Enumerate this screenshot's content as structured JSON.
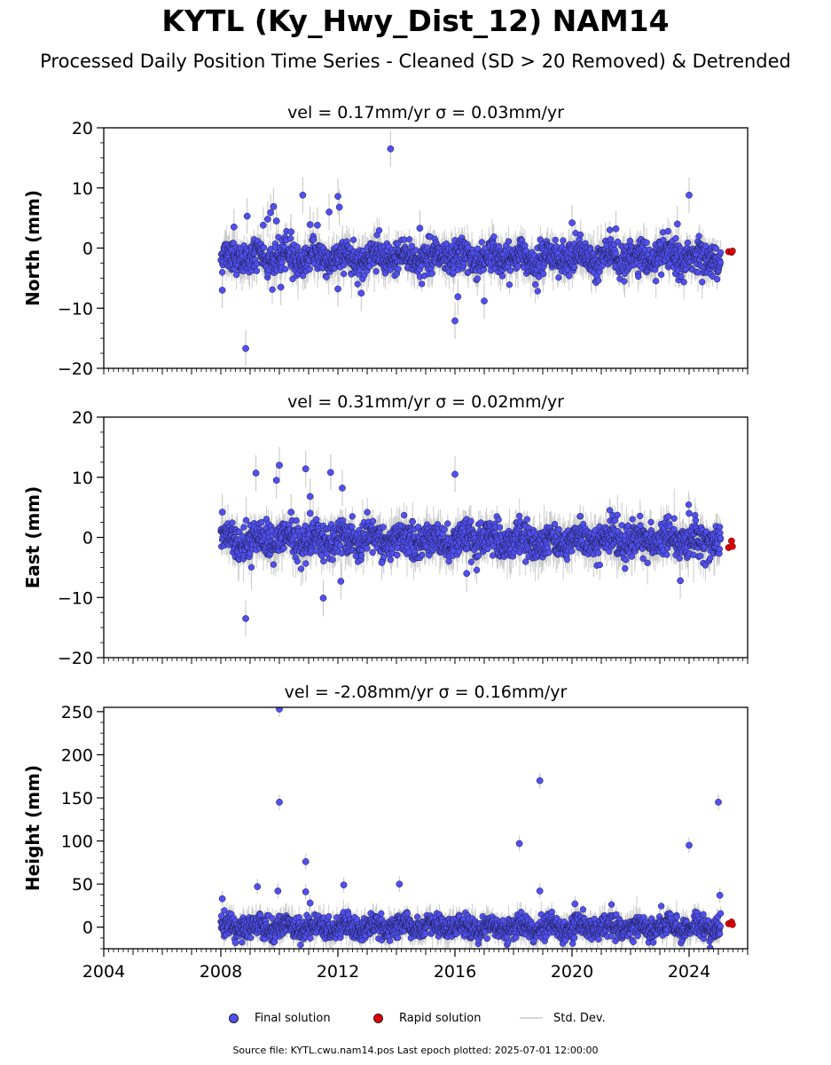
{
  "header": {
    "title": "KYTL (Ky_Hwy_Dist_12) NAM14",
    "subtitle": "Processed Daily Position Time Series - Cleaned (SD > 20 Removed) & Detrended"
  },
  "legend": {
    "final": "Final solution",
    "rapid": "Rapid solution",
    "std": "Std. Dev."
  },
  "footer": {
    "text": "Source file: KYTL.cwu.nam14.pos  Last epoch plotted: 2025-07-01 12:00:00"
  },
  "colors": {
    "final_fill": "#5050f0",
    "final_edge": "#1a1a40",
    "rapid_fill": "#e00000",
    "stddev": "#cccccc"
  },
  "chart_data": [
    {
      "type": "scatter",
      "title": "vel = 0.17mm/yr   σ = 0.03mm/yr",
      "ylabel": "North (mm)",
      "xlim": [
        2004.0,
        2026.0
      ],
      "ylim": [
        -20,
        20
      ],
      "yticks": [
        -20,
        -10,
        0,
        10,
        20
      ],
      "xticks": [
        2004,
        2008,
        2012,
        2016,
        2020,
        2024
      ],
      "xticklabels_visible": false,
      "final_range": [
        2008.0,
        2025.08
      ],
      "noise_sd": 1.3,
      "outliers": [
        [
          2008.05,
          -7.0
        ],
        [
          2008.45,
          3.5
        ],
        [
          2008.85,
          -16.7
        ],
        [
          2008.9,
          5.3
        ],
        [
          2009.45,
          3.8
        ],
        [
          2009.6,
          4.8
        ],
        [
          2009.7,
          5.9
        ],
        [
          2009.8,
          6.9
        ],
        [
          2009.9,
          4.5
        ],
        [
          2010.05,
          -6.5
        ],
        [
          2010.4,
          2.7
        ],
        [
          2010.8,
          8.8
        ],
        [
          2011.05,
          3.9
        ],
        [
          2011.3,
          3.8
        ],
        [
          2011.7,
          6.0
        ],
        [
          2012.0,
          8.6
        ],
        [
          2012.05,
          6.8
        ],
        [
          2012.0,
          -6.8
        ],
        [
          2012.8,
          -7.5
        ],
        [
          2013.8,
          16.5
        ],
        [
          2014.8,
          3.3
        ],
        [
          2016.0,
          -12.1
        ],
        [
          2016.1,
          -8.1
        ],
        [
          2017.0,
          -8.8
        ],
        [
          2020.0,
          4.2
        ],
        [
          2021.5,
          3.2
        ],
        [
          2024.0,
          8.8
        ],
        [
          2023.6,
          4.0
        ]
      ],
      "rapid": [
        [
          2025.35,
          -0.6
        ],
        [
          2025.45,
          -0.7
        ],
        [
          2025.48,
          -0.5
        ]
      ]
    },
    {
      "type": "scatter",
      "title": "vel = 0.31mm/yr   σ = 0.02mm/yr",
      "ylabel": "East (mm)",
      "xlim": [
        2004.0,
        2026.0
      ],
      "ylim": [
        -20,
        20
      ],
      "yticks": [
        -20,
        -10,
        0,
        10,
        20
      ],
      "xticks": [
        2004,
        2008,
        2012,
        2016,
        2020,
        2024
      ],
      "xticklabels_visible": false,
      "final_range": [
        2008.0,
        2025.08
      ],
      "noise_sd": 1.4,
      "outliers": [
        [
          2008.05,
          4.2
        ],
        [
          2008.85,
          -13.5
        ],
        [
          2009.2,
          10.7
        ],
        [
          2009.9,
          9.5
        ],
        [
          2010.0,
          12.0
        ],
        [
          2010.4,
          4.2
        ],
        [
          2010.9,
          11.4
        ],
        [
          2011.05,
          6.8
        ],
        [
          2011.05,
          4.0
        ],
        [
          2011.5,
          -10.1
        ],
        [
          2011.75,
          10.8
        ],
        [
          2012.15,
          8.2
        ],
        [
          2012.1,
          -7.3
        ],
        [
          2016.0,
          10.5
        ],
        [
          2016.4,
          -6.0
        ],
        [
          2013.5,
          -4.2
        ],
        [
          2024.0,
          4.0
        ],
        [
          2023.7,
          -7.2
        ]
      ],
      "rapid": [
        [
          2025.35,
          -1.7
        ],
        [
          2025.45,
          -0.6
        ],
        [
          2025.48,
          -1.5
        ]
      ]
    },
    {
      "type": "scatter",
      "title": "vel = -2.08mm/yr   σ = 0.16mm/yr",
      "ylabel": "Height (mm)",
      "xlim": [
        2004.0,
        2026.0
      ],
      "ylim": [
        -25,
        255
      ],
      "yticks": [
        0,
        50,
        100,
        150,
        200,
        250
      ],
      "xticks": [
        2004,
        2008,
        2012,
        2016,
        2020,
        2024
      ],
      "xticklabels_visible": true,
      "final_range": [
        2008.0,
        2025.08
      ],
      "noise_sd": 6.5,
      "outliers": [
        [
          2008.05,
          33
        ],
        [
          2009.25,
          47
        ],
        [
          2009.95,
          42
        ],
        [
          2010.0,
          253
        ],
        [
          2010.0,
          145
        ],
        [
          2010.9,
          76
        ],
        [
          2010.9,
          41
        ],
        [
          2011.05,
          28
        ],
        [
          2012.2,
          49
        ],
        [
          2014.1,
          50
        ],
        [
          2018.2,
          97
        ],
        [
          2018.9,
          170
        ],
        [
          2018.9,
          42
        ],
        [
          2024.0,
          95
        ],
        [
          2025.0,
          145
        ],
        [
          2025.05,
          37
        ],
        [
          2020.1,
          27
        ],
        [
          2008.5,
          -18
        ]
      ],
      "rapid": [
        [
          2025.35,
          4
        ],
        [
          2025.45,
          6
        ],
        [
          2025.48,
          3
        ]
      ]
    }
  ]
}
